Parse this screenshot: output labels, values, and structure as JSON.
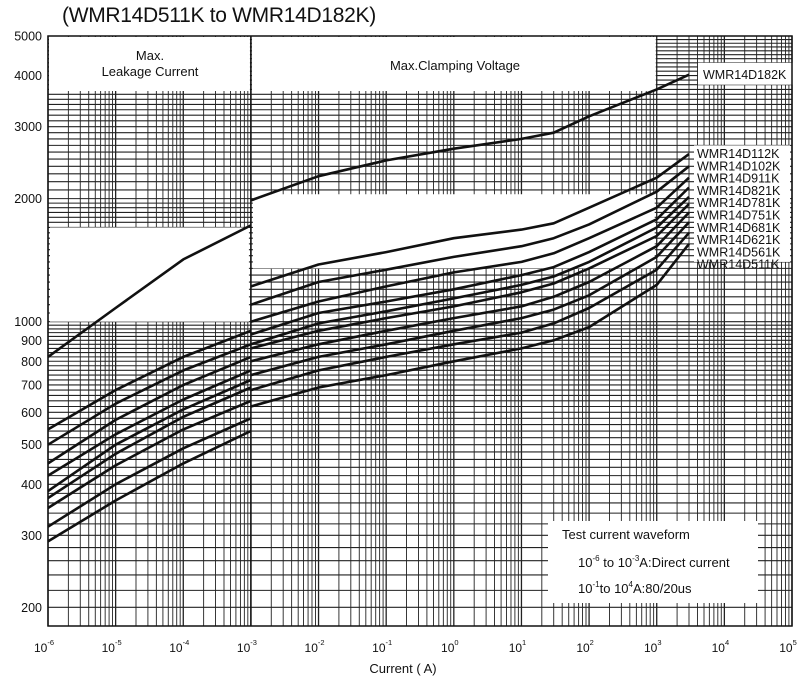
{
  "page": {
    "title": "(WMR14D511K to WMR14D182K)"
  },
  "chart_data": {
    "type": "line",
    "title": "(WMR14D511K to WMR14D182K)",
    "xlabel": "Current ( A)",
    "ylabel": "",
    "x_scale": "log",
    "y_scale": "log",
    "xlim": [
      1e-06,
      100000
    ],
    "ylim": [
      180,
      5000
    ],
    "x_ticks": [
      {
        "base": "10",
        "exp": "-6"
      },
      {
        "base": "10",
        "exp": "-5"
      },
      {
        "base": "10",
        "exp": "-4"
      },
      {
        "base": "10",
        "exp": "-3"
      },
      {
        "base": "10",
        "exp": "-2"
      },
      {
        "base": "10",
        "exp": "-1"
      },
      {
        "base": "10",
        "exp": "0"
      },
      {
        "base": "10",
        "exp": "1"
      },
      {
        "base": "10",
        "exp": "2"
      },
      {
        "base": "10",
        "exp": "3"
      },
      {
        "base": "10",
        "exp": "4"
      },
      {
        "base": "10",
        "exp": "5"
      }
    ],
    "y_ticks": [
      "200",
      "300",
      "400",
      "500",
      "600",
      "700",
      "800",
      "900",
      "1000",
      "2000",
      "3000",
      "4000",
      "5000"
    ],
    "grid": true,
    "regions": [
      {
        "label_line1": "Max.",
        "label_line2": "Leakage Current",
        "x_range": [
          1e-06,
          0.001
        ]
      },
      {
        "label_line1": "Max.Clamping Voltage",
        "label_line2": "",
        "x_range": [
          0.001,
          100000
        ]
      }
    ],
    "series": [
      {
        "name": "WMR14D182K",
        "leakage": [
          [
            1e-06,
            820
          ],
          [
            1e-05,
            1080
          ],
          [
            0.0001,
            1420
          ],
          [
            0.001,
            1720
          ]
        ],
        "clamping": [
          [
            0.001,
            1980
          ],
          [
            0.01,
            2270
          ],
          [
            0.1,
            2480
          ],
          [
            1,
            2650
          ],
          [
            10,
            2800
          ],
          [
            30,
            2900
          ],
          [
            100,
            3180
          ],
          [
            1000,
            3700
          ],
          [
            3000,
            4020
          ]
        ]
      },
      {
        "name": "WMR14D112K",
        "leakage": [
          [
            1e-06,
            545
          ],
          [
            1e-05,
            680
          ],
          [
            0.0001,
            820
          ],
          [
            0.001,
            950
          ]
        ],
        "clamping": [
          [
            0.001,
            1220
          ],
          [
            0.01,
            1380
          ],
          [
            0.1,
            1480
          ],
          [
            1,
            1600
          ],
          [
            10,
            1680
          ],
          [
            30,
            1740
          ],
          [
            100,
            1900
          ],
          [
            1000,
            2250
          ],
          [
            3000,
            2570
          ]
        ]
      },
      {
        "name": "WMR14D102K",
        "leakage": [
          [
            1e-06,
            500
          ],
          [
            1e-05,
            630
          ],
          [
            0.0001,
            760
          ],
          [
            0.001,
            880
          ]
        ],
        "clamping": [
          [
            0.001,
            1100
          ],
          [
            0.01,
            1250
          ],
          [
            0.1,
            1340
          ],
          [
            1,
            1440
          ],
          [
            10,
            1530
          ],
          [
            30,
            1600
          ],
          [
            100,
            1730
          ],
          [
            1000,
            2080
          ],
          [
            3000,
            2400
          ]
        ]
      },
      {
        "name": "WMR14D911K",
        "leakage": [
          [
            1e-06,
            450
          ],
          [
            1e-05,
            575
          ],
          [
            0.0001,
            700
          ],
          [
            0.001,
            820
          ]
        ],
        "clamping": [
          [
            0.001,
            1000
          ],
          [
            0.01,
            1120
          ],
          [
            0.1,
            1220
          ],
          [
            1,
            1320
          ],
          [
            10,
            1400
          ],
          [
            30,
            1470
          ],
          [
            100,
            1600
          ],
          [
            1000,
            1900
          ],
          [
            3000,
            2250
          ]
        ]
      },
      {
        "name": "WMR14D821K",
        "leakage": [
          [
            1e-06,
            420
          ],
          [
            1e-05,
            530
          ],
          [
            0.0001,
            645
          ],
          [
            0.001,
            760
          ]
        ],
        "clamping": [
          [
            0.001,
            930
          ],
          [
            0.01,
            1050
          ],
          [
            0.1,
            1120
          ],
          [
            1,
            1200
          ],
          [
            10,
            1300
          ],
          [
            30,
            1360
          ],
          [
            100,
            1480
          ],
          [
            1000,
            1780
          ],
          [
            3000,
            2130
          ]
        ]
      },
      {
        "name": "WMR14D781K",
        "leakage": [
          [
            1e-06,
            385
          ],
          [
            1e-05,
            500
          ],
          [
            0.0001,
            610
          ],
          [
            0.001,
            720
          ]
        ],
        "clamping": [
          [
            0.001,
            880
          ],
          [
            0.01,
            990
          ],
          [
            0.1,
            1060
          ],
          [
            1,
            1140
          ],
          [
            10,
            1230
          ],
          [
            30,
            1290
          ],
          [
            100,
            1400
          ],
          [
            1000,
            1700
          ],
          [
            3000,
            2020
          ]
        ]
      },
      {
        "name": "WMR14D751K",
        "leakage": [
          [
            1e-06,
            370
          ],
          [
            1e-05,
            475
          ],
          [
            0.0001,
            585
          ],
          [
            0.001,
            690
          ]
        ],
        "clamping": [
          [
            0.001,
            860
          ],
          [
            0.01,
            950
          ],
          [
            0.1,
            1020
          ],
          [
            1,
            1090
          ],
          [
            10,
            1180
          ],
          [
            30,
            1240
          ],
          [
            100,
            1350
          ],
          [
            1000,
            1620
          ],
          [
            3000,
            1940
          ]
        ]
      },
      {
        "name": "WMR14D681K",
        "leakage": [
          [
            1e-06,
            350
          ],
          [
            1e-05,
            445
          ],
          [
            0.0001,
            545
          ],
          [
            0.001,
            640
          ]
        ],
        "clamping": [
          [
            0.001,
            800
          ],
          [
            0.01,
            880
          ],
          [
            0.1,
            950
          ],
          [
            1,
            1020
          ],
          [
            10,
            1090
          ],
          [
            30,
            1150
          ],
          [
            100,
            1250
          ],
          [
            1000,
            1530
          ],
          [
            3000,
            1850
          ]
        ]
      },
      {
        "name": "WMR14D621K",
        "leakage": [
          [
            1e-06,
            315
          ],
          [
            1e-05,
            400
          ],
          [
            0.0001,
            490
          ],
          [
            0.001,
            580
          ]
        ],
        "clamping": [
          [
            0.001,
            740
          ],
          [
            0.01,
            820
          ],
          [
            0.1,
            880
          ],
          [
            1,
            950
          ],
          [
            10,
            1020
          ],
          [
            30,
            1070
          ],
          [
            100,
            1160
          ],
          [
            1000,
            1440
          ],
          [
            3000,
            1750
          ]
        ]
      },
      {
        "name": "WMR14D561K",
        "leakage": [
          [
            1e-06,
            290
          ],
          [
            1e-05,
            365
          ],
          [
            0.0001,
            450
          ],
          [
            0.001,
            540
          ]
        ],
        "clamping": [
          [
            0.001,
            680
          ],
          [
            0.01,
            760
          ],
          [
            0.1,
            820
          ],
          [
            1,
            880
          ],
          [
            10,
            940
          ],
          [
            30,
            990
          ],
          [
            100,
            1080
          ],
          [
            1000,
            1340
          ],
          [
            3000,
            1650
          ]
        ]
      },
      {
        "name": "WMR14D511K",
        "leakage": [],
        "clamping": [
          [
            0.001,
            620
          ],
          [
            0.01,
            690
          ],
          [
            0.1,
            740
          ],
          [
            1,
            800
          ],
          [
            10,
            860
          ],
          [
            30,
            900
          ],
          [
            100,
            970
          ],
          [
            1000,
            1230
          ],
          [
            3000,
            1550
          ]
        ]
      }
    ],
    "annotation": {
      "heading": "Test current waveform",
      "line1": {
        "base1": "10",
        "exp1": "-6",
        "mid": "to",
        "base2": "10",
        "exp2": "-3",
        "tail": "A:Direct current"
      },
      "line2": {
        "base1": "10",
        "exp1": "-1",
        "mid": "to",
        "base2": "10",
        "exp2": "4",
        "tail": "A:80/20us"
      }
    }
  }
}
